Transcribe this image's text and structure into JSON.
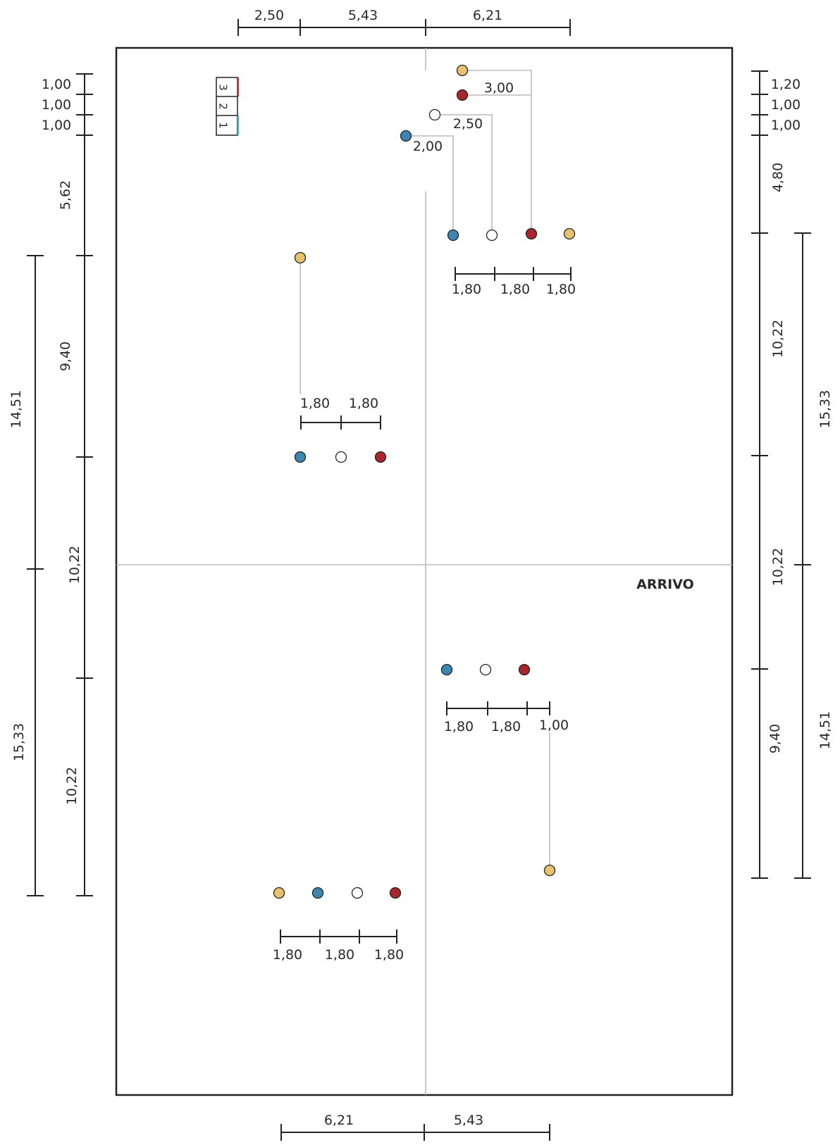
{
  "dimensions": {
    "top": [
      "2,50",
      "5,43",
      "6,21"
    ],
    "bottom": [
      "6,21",
      "5,43"
    ],
    "left_inner": [
      "1,00",
      "1,00",
      "1,00",
      "5,62",
      "9,40",
      "10,22",
      "10,22"
    ],
    "left_outer": [
      "14,51",
      "15,33"
    ],
    "right_inner": [
      "1,20",
      "1,00",
      "1,00",
      "4,80",
      "10,22",
      "10,22",
      "9,40"
    ],
    "right_outer": [
      "15,33",
      "14,51"
    ],
    "top_right_offsets": [
      "3,00",
      "2,50",
      "2,00"
    ],
    "top_right_spacing": [
      "1,80",
      "1,80",
      "1,80"
    ],
    "upper_left_spacing": [
      "1,80",
      "1,80"
    ],
    "lower_right_spacing": [
      "1,80",
      "1,80",
      "1,00"
    ],
    "lower_left_spacing": [
      "1,80",
      "1,80",
      "1,80"
    ]
  },
  "finish_label": "ARRIVO",
  "lanes": [
    "3",
    "2",
    "1"
  ],
  "colors": {
    "yellow": "#e8c06e",
    "red": "#a8262e",
    "blue": "#3c86b0",
    "white": "#ffffff",
    "outline": "#222222",
    "guide": "#bbbbbb",
    "lane3": "#e03030",
    "lane1": "#3ac6c6"
  }
}
